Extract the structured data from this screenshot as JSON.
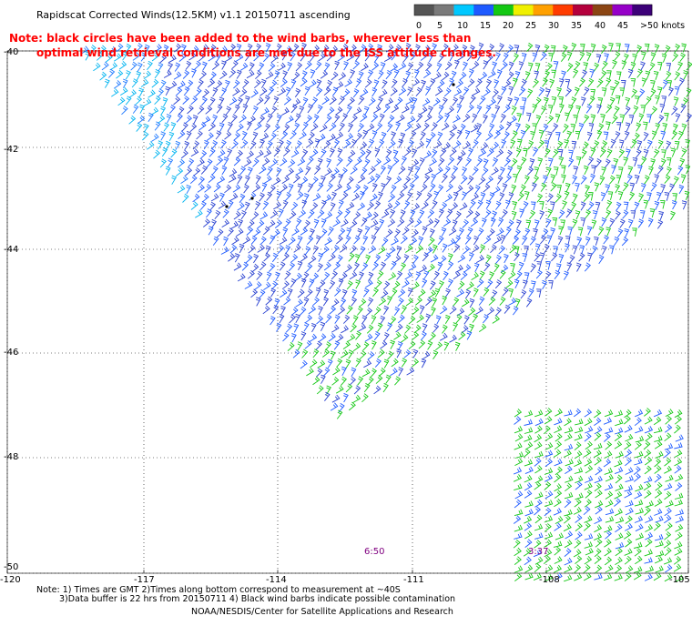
{
  "title": "Rapidscat Corrected Winds(12.5KM) v1.1 20150711 ascending",
  "note_line1": "Note: black circles have been added to the wind barbs, wherever less than",
  "note_line2": "optimal wind retrieval conditions are met due to the ISS attitude changes.",
  "color_scale": {
    "labels": [
      "0",
      "5",
      "10",
      "15",
      "20",
      "25",
      "30",
      "35",
      "40",
      "45",
      ">50 knots"
    ],
    "colors": [
      "#555555",
      "#7a7a7a",
      "#00c8ff",
      "#1e5aff",
      "#14c814",
      "#f0f000",
      "#ffa000",
      "#ff3c00",
      "#b4003c",
      "#8b4513",
      "#9600c8",
      "#3c0078"
    ]
  },
  "lat_labels": [
    "-40",
    "-42",
    "-44",
    "-46",
    "-48",
    "-50"
  ],
  "lon_labels": [
    "-120",
    "-117",
    "-114",
    "-111",
    "-108",
    "-105"
  ],
  "pass_times": [
    "6:50",
    "3:37"
  ],
  "footnote_line1": "Note: 1) Times are GMT 2)Times along bottom correspond to measurement at ~40S",
  "footnote_line2": "3)Data buffer is 22 hrs from 20150711 4) Black wind barbs indicate possible contamination",
  "credit": "NOAA/NESDIS/Center for Satellite Applications and Research"
}
